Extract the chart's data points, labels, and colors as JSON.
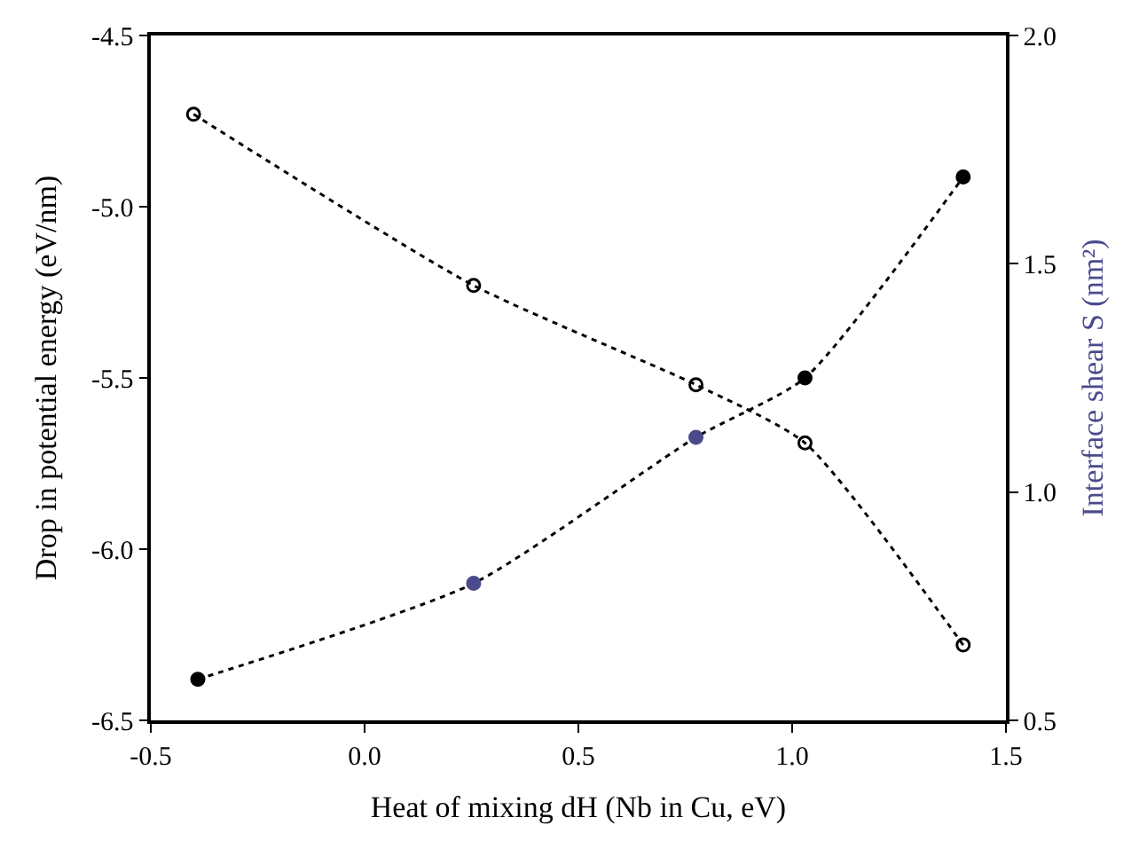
{
  "chart_data": {
    "type": "line",
    "xlabel": "Heat of mixing dH (Nb in Cu, eV)",
    "ylabel": "Drop in potential energy (eV/nm)",
    "y2label": "Interface shear S (nm²)",
    "series": [
      {
        "color": "#000000",
        "marker": "circle-open",
        "x": [
          -0.4,
          0.255,
          0.775,
          1.03,
          1.4
        ],
        "values": [
          -4.73,
          -5.23,
          -5.52,
          -5.69,
          -6.28
        ]
      },
      {
        "axis": "y2",
        "color": "#000000",
        "colors": [
          "#000000",
          "#4a4a8c",
          "#4a4a8c",
          "#000000",
          "#000000"
        ],
        "marker": "circle",
        "x": [
          -0.39,
          0.255,
          0.775,
          1.03,
          1.4
        ],
        "values": [
          0.59,
          0.8,
          1.12,
          1.25,
          1.69
        ]
      }
    ],
    "line_style": "dotted",
    "legend": false,
    "xlim": [
      -0.5,
      1.5
    ],
    "xticks": [
      -0.5,
      {
        "value": 0,
        "label": "0.0"
      },
      0.5,
      {
        "value": 1,
        "label": "1.0"
      },
      1.5
    ],
    "ylim": [
      -6.5,
      -4.5
    ],
    "yticks": [
      -6.5,
      {
        "value": -6,
        "label": "-6.0"
      },
      -5.5,
      {
        "value": -5,
        "label": "-5.0"
      },
      -4.5
    ],
    "y2lim": [
      0.5,
      2.0
    ],
    "y2ticks": [
      0.5,
      {
        "value": 1,
        "label": "1.0"
      },
      1.5,
      {
        "value": 2,
        "label": "2.0"
      }
    ]
  }
}
